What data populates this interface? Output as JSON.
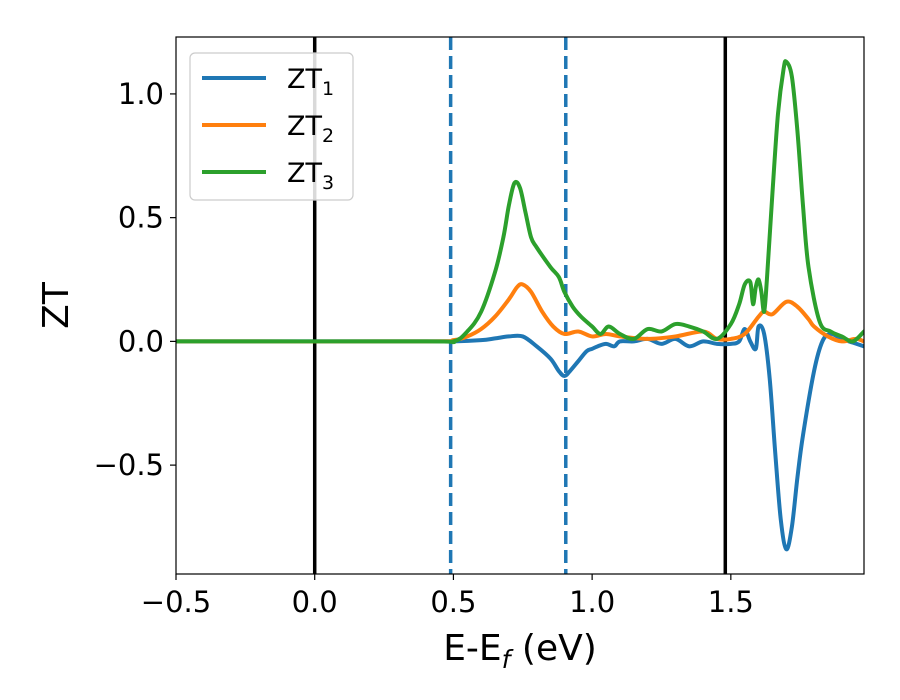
{
  "chart_data": {
    "type": "line",
    "xlabel": "E-E",
    "xlabel_sub": "f",
    "xlabel_unit": " (eV)",
    "ylabel": "ZT",
    "xlim": [
      -0.5,
      1.98
    ],
    "ylim": [
      -0.94,
      1.23
    ],
    "x_ticks": [
      -0.5,
      0.0,
      0.5,
      1.0,
      1.5
    ],
    "x_tick_labels": [
      "−0.5",
      "0.0",
      "0.5",
      "1.0",
      "1.5"
    ],
    "y_ticks": [
      -0.5,
      0.0,
      0.5,
      1.0
    ],
    "y_tick_labels": [
      "−0.5",
      "0.0",
      "0.5",
      "1.0"
    ],
    "grid": false,
    "legend_position": "top-left",
    "vlines": [
      {
        "x": 0.0,
        "style": "solid",
        "color": "#000000"
      },
      {
        "x": 1.48,
        "style": "solid",
        "color": "#000000"
      },
      {
        "x": 0.49,
        "style": "dashed",
        "color": "#1f77b4"
      },
      {
        "x": 0.905,
        "style": "dashed",
        "color": "#1f77b4"
      }
    ],
    "series": [
      {
        "name": "ZT",
        "sub": "1",
        "color": "#1f77b4",
        "x": [
          -0.5,
          0.4,
          0.5,
          0.6,
          0.65,
          0.7,
          0.75,
          0.8,
          0.85,
          0.88,
          0.9,
          0.92,
          0.95,
          0.98,
          1.0,
          1.02,
          1.05,
          1.08,
          1.1,
          1.15,
          1.2,
          1.25,
          1.3,
          1.35,
          1.4,
          1.45,
          1.5,
          1.53,
          1.55,
          1.57,
          1.59,
          1.6,
          1.62,
          1.64,
          1.66,
          1.68,
          1.7,
          1.72,
          1.74,
          1.76,
          1.8,
          1.83,
          1.86,
          1.9,
          1.94,
          1.98
        ],
        "y": [
          0.0,
          0.0,
          0.0,
          0.005,
          0.012,
          0.02,
          0.02,
          -0.02,
          -0.07,
          -0.12,
          -0.14,
          -0.12,
          -0.08,
          -0.04,
          -0.03,
          -0.02,
          -0.01,
          -0.02,
          0.0,
          0.0,
          0.01,
          -0.01,
          0.01,
          -0.02,
          0.0,
          -0.01,
          -0.01,
          0.0,
          0.05,
          0.0,
          -0.03,
          0.06,
          0.03,
          -0.15,
          -0.45,
          -0.72,
          -0.84,
          -0.75,
          -0.55,
          -0.38,
          -0.12,
          0.0,
          0.03,
          0.01,
          -0.005,
          -0.02
        ]
      },
      {
        "name": "ZT",
        "sub": "2",
        "color": "#ff7f0e",
        "x": [
          -0.5,
          0.4,
          0.5,
          0.55,
          0.6,
          0.65,
          0.7,
          0.73,
          0.75,
          0.78,
          0.82,
          0.86,
          0.9,
          0.95,
          1.0,
          1.05,
          1.1,
          1.2,
          1.3,
          1.4,
          1.45,
          1.5,
          1.55,
          1.6,
          1.62,
          1.65,
          1.7,
          1.74,
          1.78,
          1.8,
          1.85,
          1.9,
          1.95,
          1.98
        ],
        "y": [
          0.0,
          0.0,
          0.005,
          0.02,
          0.05,
          0.1,
          0.17,
          0.22,
          0.23,
          0.2,
          0.12,
          0.06,
          0.03,
          0.04,
          0.02,
          0.03,
          0.02,
          0.01,
          0.02,
          0.04,
          0.01,
          0.01,
          0.03,
          0.1,
          0.12,
          0.11,
          0.16,
          0.14,
          0.09,
          0.06,
          0.02,
          0.0,
          0.01,
          0.0
        ]
      },
      {
        "name": "ZT",
        "sub": "3",
        "color": "#2ca02c",
        "x": [
          -0.5,
          0.4,
          0.5,
          0.55,
          0.6,
          0.65,
          0.68,
          0.7,
          0.72,
          0.74,
          0.76,
          0.78,
          0.8,
          0.85,
          0.88,
          0.9,
          0.93,
          0.96,
          1.0,
          1.03,
          1.06,
          1.1,
          1.15,
          1.2,
          1.25,
          1.3,
          1.35,
          1.4,
          1.45,
          1.5,
          1.53,
          1.55,
          1.57,
          1.58,
          1.59,
          1.6,
          1.61,
          1.62,
          1.63,
          1.65,
          1.67,
          1.69,
          1.7,
          1.72,
          1.74,
          1.76,
          1.78,
          1.82,
          1.86,
          1.9,
          1.94,
          1.98
        ],
        "y": [
          0.0,
          0.0,
          0.0,
          0.04,
          0.12,
          0.28,
          0.42,
          0.55,
          0.64,
          0.62,
          0.52,
          0.42,
          0.38,
          0.3,
          0.26,
          0.2,
          0.14,
          0.1,
          0.06,
          0.03,
          0.06,
          0.03,
          0.01,
          0.05,
          0.04,
          0.07,
          0.06,
          0.04,
          0.01,
          0.07,
          0.15,
          0.23,
          0.24,
          0.15,
          0.22,
          0.25,
          0.2,
          0.12,
          0.25,
          0.6,
          0.92,
          1.1,
          1.13,
          1.07,
          0.85,
          0.55,
          0.3,
          0.08,
          0.04,
          0.02,
          0.0,
          0.04
        ]
      }
    ]
  }
}
